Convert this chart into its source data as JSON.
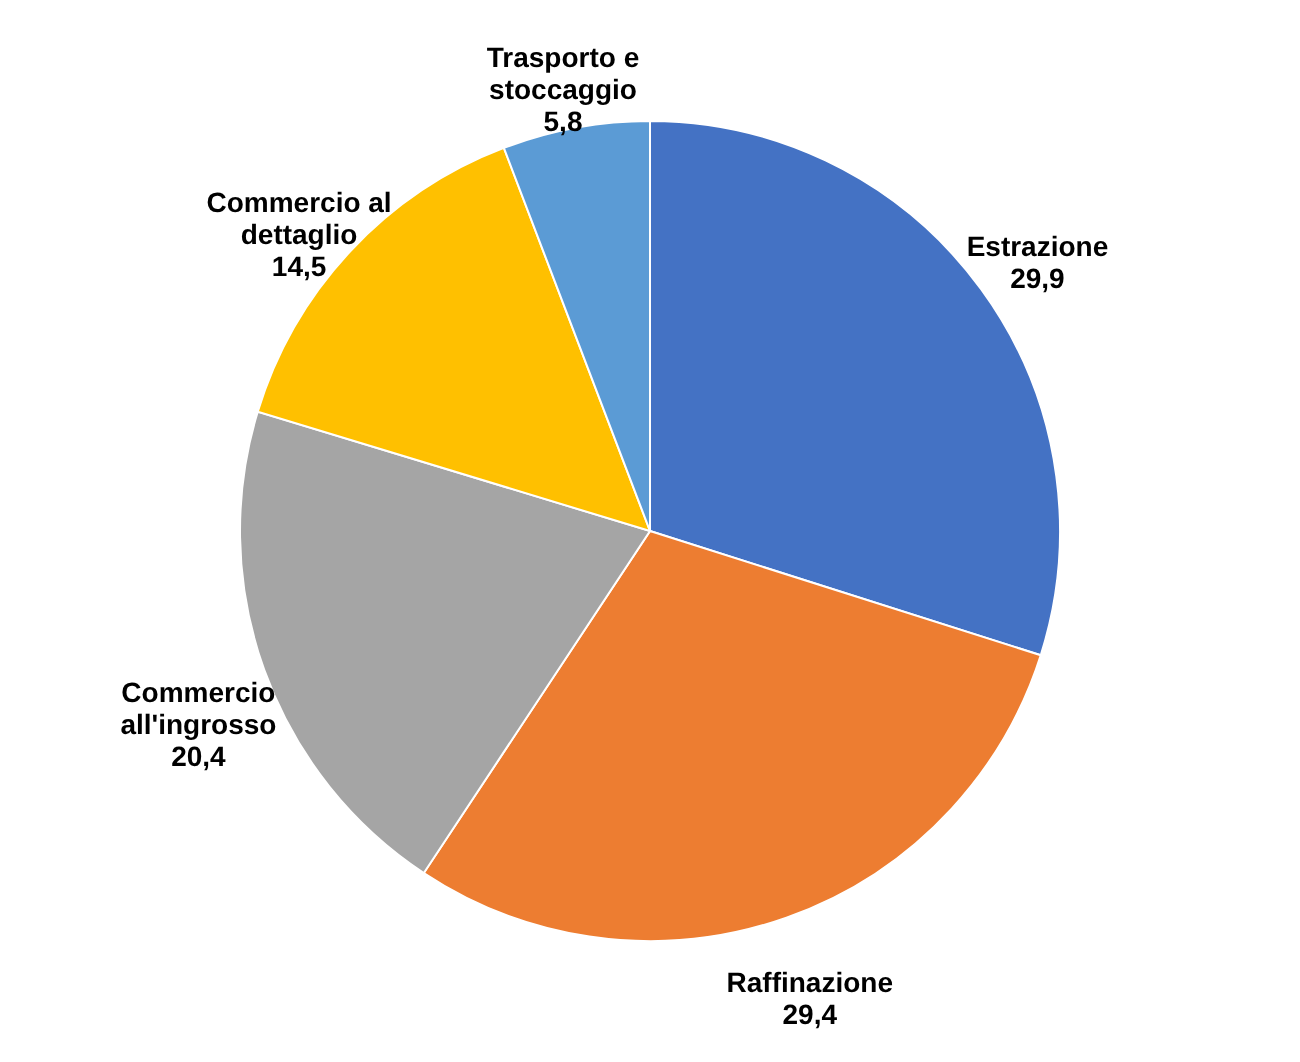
{
  "chart_data": {
    "type": "pie",
    "categories": [
      "Estrazione",
      "Raffinazione",
      "Commercio all'ingrosso",
      "Commercio al dettaglio",
      "Trasporto e stoccaggio"
    ],
    "values": [
      29.9,
      29.4,
      20.4,
      14.5,
      5.8
    ],
    "value_labels": [
      "29,9",
      "29,4",
      "20,4",
      "14,5",
      "5,8"
    ],
    "colors": [
      "#4472c4",
      "#ed7d31",
      "#a5a5a5",
      "#ffc000",
      "#5b9bd5"
    ]
  }
}
